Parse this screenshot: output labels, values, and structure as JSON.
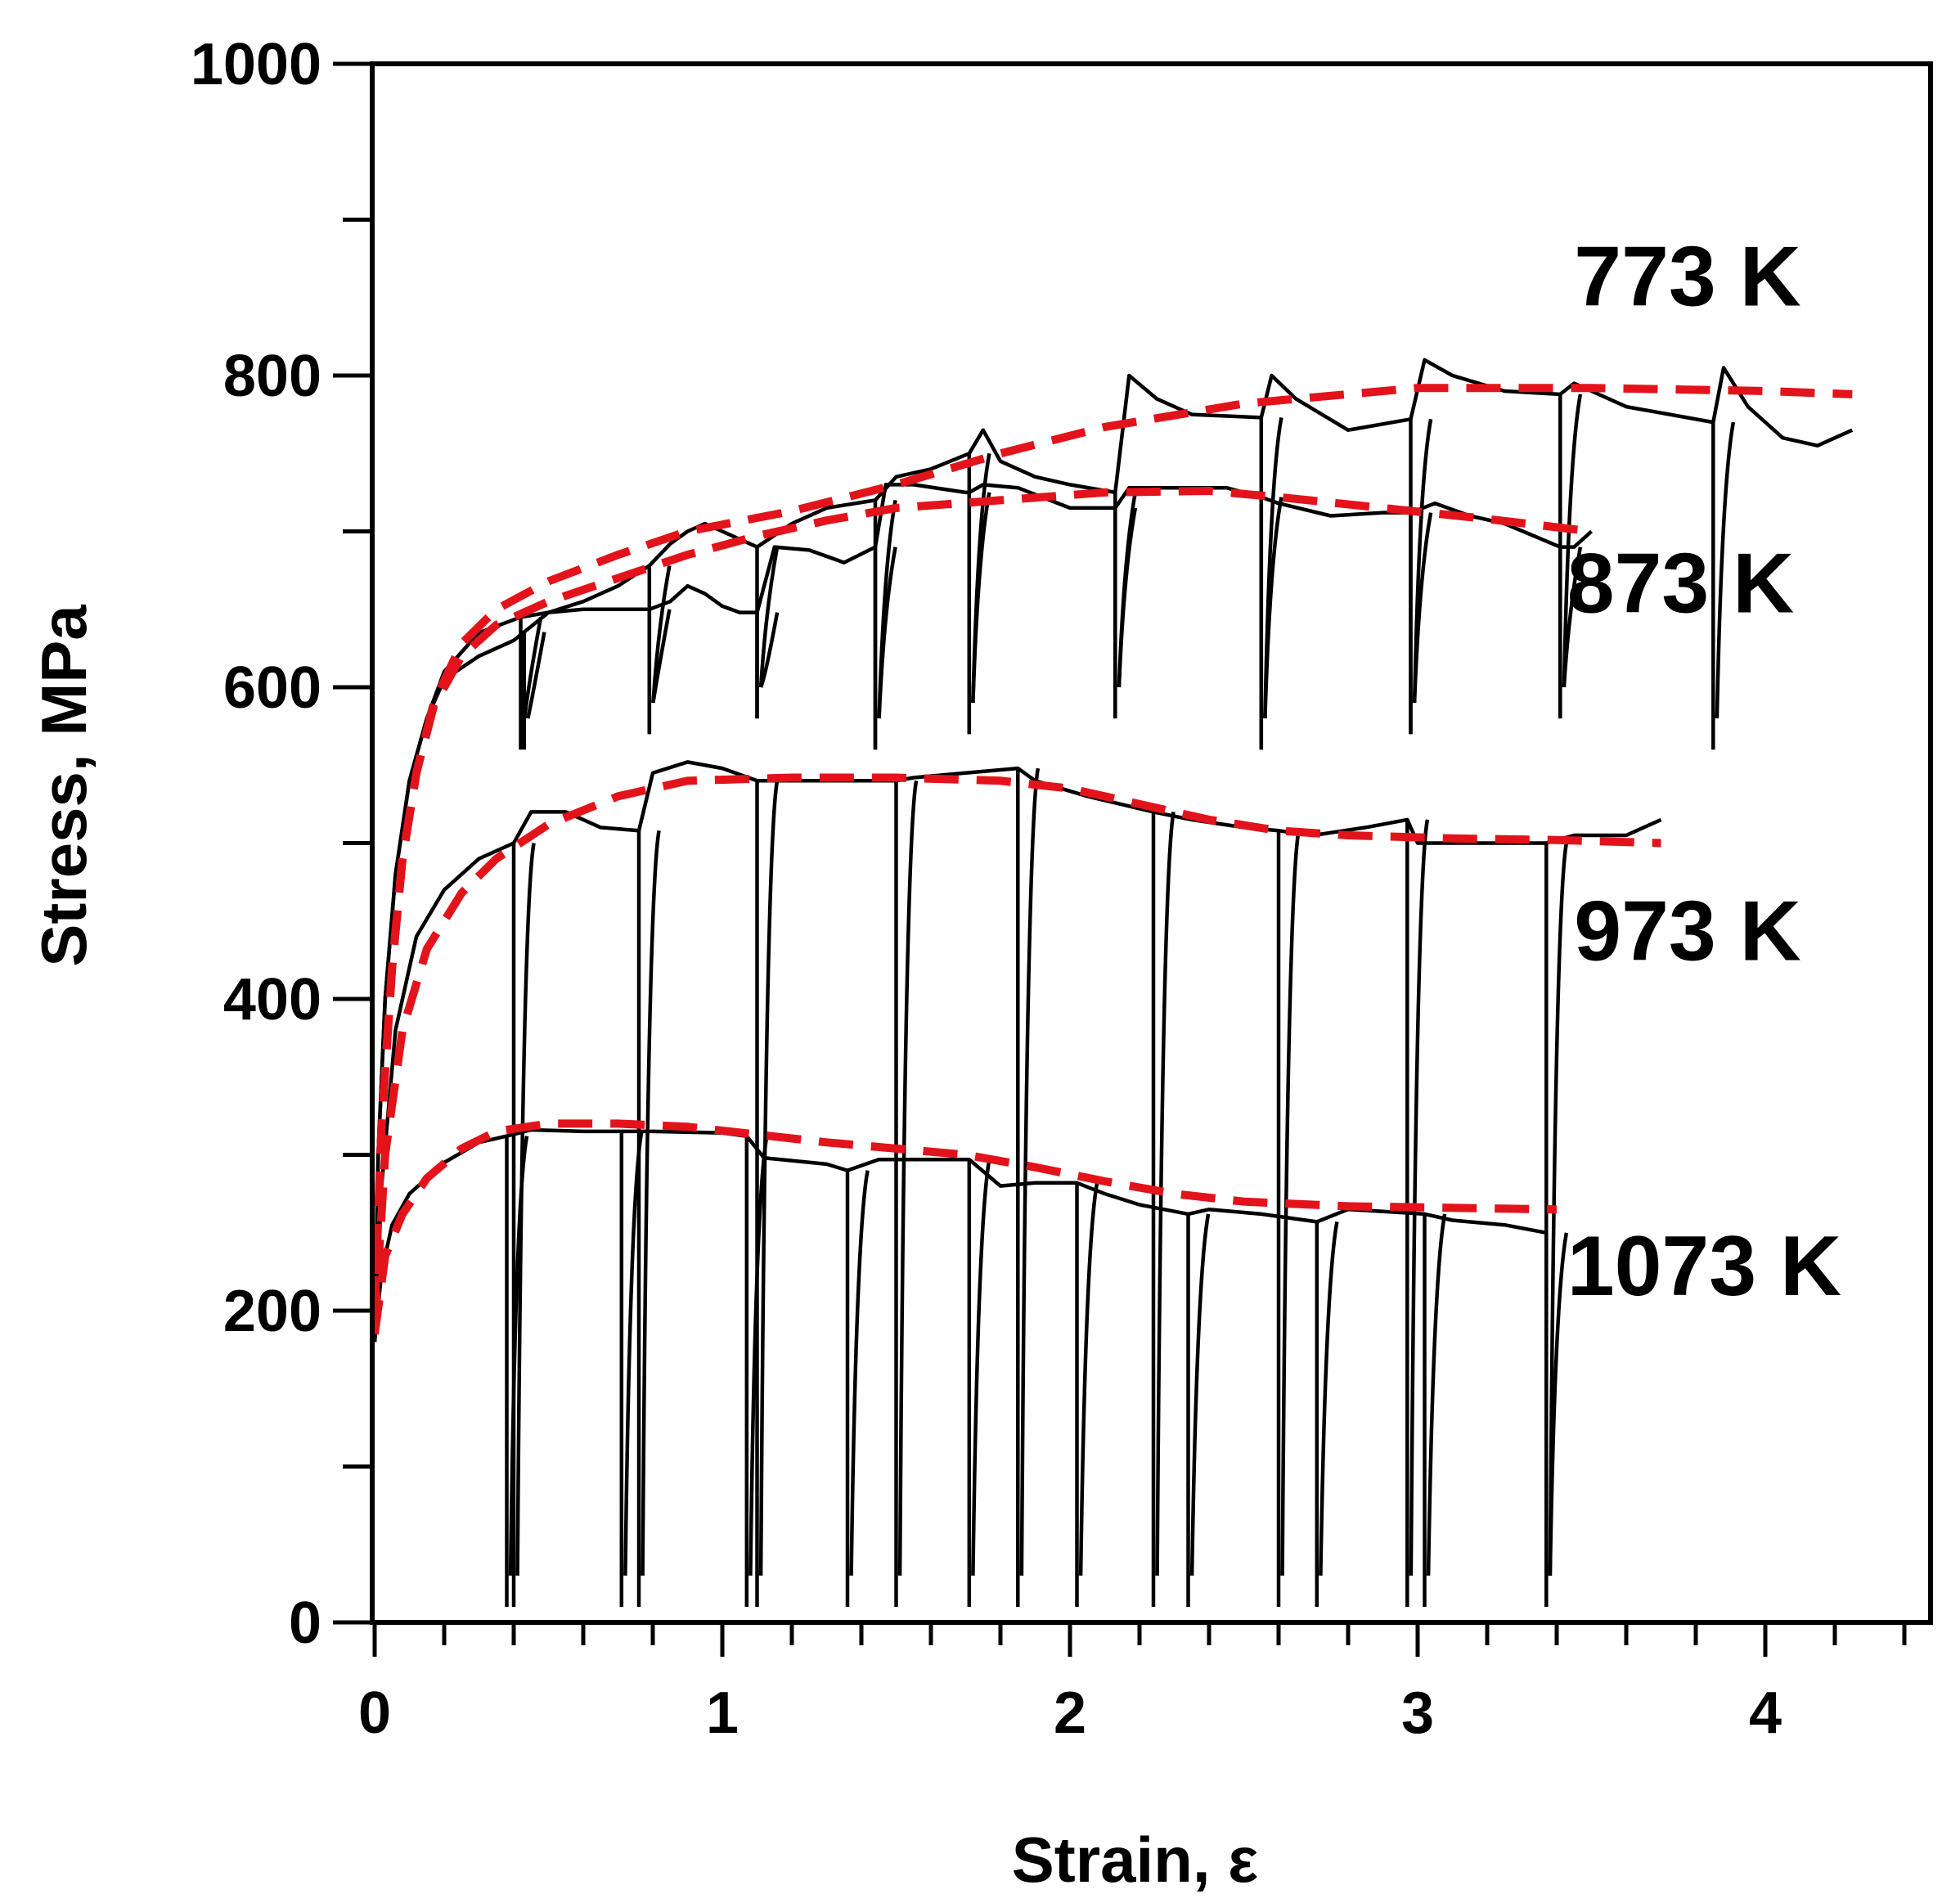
{
  "colors": {
    "fit": "#e3131b",
    "raw": "#000000",
    "axis": "#000000"
  },
  "chart_data": {
    "type": "line",
    "title": "",
    "xlabel": "Strain, ε",
    "ylabel": "Stress, MPa",
    "xlim": [
      0,
      4.4
    ],
    "ylim": [
      0,
      1000
    ],
    "xticks": [
      0,
      1,
      2,
      3,
      4
    ],
    "xtick_labels": [
      "0",
      "1",
      "2",
      "3",
      "4"
    ],
    "xminor_step": 0.2,
    "yticks": [
      0,
      200,
      400,
      600,
      800,
      1000
    ],
    "ytick_labels": [
      "0",
      "200",
      "400",
      "600",
      "800",
      "1000"
    ],
    "yminor_step": 100,
    "grid": false,
    "series": [
      {
        "name": "773 K",
        "label": "773 K",
        "label_anchor": [
          3.45,
          845
        ],
        "unload_points": [
          0.43,
          0.79,
          1.1,
          1.44,
          1.71,
          2.13,
          2.55,
          2.98,
          3.41,
          3.85
        ],
        "raw": [
          [
            0.0,
            180
          ],
          [
            0.01,
            300
          ],
          [
            0.03,
            400
          ],
          [
            0.06,
            480
          ],
          [
            0.1,
            540
          ],
          [
            0.15,
            580
          ],
          [
            0.2,
            605
          ],
          [
            0.3,
            620
          ],
          [
            0.4,
            630
          ],
          [
            0.5,
            648
          ],
          [
            0.6,
            655
          ],
          [
            0.7,
            665
          ],
          [
            0.79,
            678
          ],
          [
            0.85,
            692
          ],
          [
            0.9,
            700
          ],
          [
            0.95,
            705
          ],
          [
            1.0,
            700
          ],
          [
            1.1,
            690
          ],
          [
            1.2,
            705
          ],
          [
            1.3,
            715
          ],
          [
            1.44,
            720
          ],
          [
            1.5,
            735
          ],
          [
            1.6,
            740
          ],
          [
            1.71,
            750
          ],
          [
            1.75,
            765
          ],
          [
            1.8,
            745
          ],
          [
            1.9,
            735
          ],
          [
            2.0,
            730
          ],
          [
            2.13,
            725
          ],
          [
            2.17,
            800
          ],
          [
            2.25,
            785
          ],
          [
            2.35,
            775
          ],
          [
            2.55,
            773
          ],
          [
            2.58,
            800
          ],
          [
            2.65,
            785
          ],
          [
            2.8,
            765
          ],
          [
            2.98,
            772
          ],
          [
            3.02,
            810
          ],
          [
            3.1,
            800
          ],
          [
            3.25,
            790
          ],
          [
            3.41,
            788
          ],
          [
            3.45,
            795
          ],
          [
            3.6,
            780
          ],
          [
            3.85,
            770
          ],
          [
            3.88,
            805
          ],
          [
            3.95,
            780
          ],
          [
            4.05,
            760
          ],
          [
            4.15,
            755
          ],
          [
            4.25,
            765
          ]
        ],
        "fit": [
          [
            0.0,
            200
          ],
          [
            0.02,
            320
          ],
          [
            0.05,
            420
          ],
          [
            0.08,
            490
          ],
          [
            0.12,
            545
          ],
          [
            0.17,
            590
          ],
          [
            0.25,
            628
          ],
          [
            0.35,
            650
          ],
          [
            0.5,
            668
          ],
          [
            0.7,
            685
          ],
          [
            0.9,
            700
          ],
          [
            1.2,
            713
          ],
          [
            1.5,
            730
          ],
          [
            1.8,
            750
          ],
          [
            2.1,
            767
          ],
          [
            2.5,
            782
          ],
          [
            3.0,
            792
          ],
          [
            3.5,
            792
          ],
          [
            4.0,
            790
          ],
          [
            4.25,
            788
          ]
        ]
      },
      {
        "name": "873 K",
        "label": "873 K",
        "label_anchor": [
          3.43,
          648
        ],
        "unload_points": [
          0.42,
          0.79,
          1.1,
          1.44,
          1.71,
          2.13,
          2.55,
          2.98,
          3.41
        ],
        "raw": [
          [
            0.0,
            180
          ],
          [
            0.01,
            300
          ],
          [
            0.03,
            400
          ],
          [
            0.06,
            480
          ],
          [
            0.1,
            540
          ],
          [
            0.15,
            580
          ],
          [
            0.2,
            610
          ],
          [
            0.3,
            635
          ],
          [
            0.42,
            645
          ],
          [
            0.5,
            648
          ],
          [
            0.6,
            650
          ],
          [
            0.7,
            650
          ],
          [
            0.79,
            650
          ],
          [
            0.85,
            655
          ],
          [
            0.9,
            665
          ],
          [
            0.95,
            660
          ],
          [
            1.0,
            652
          ],
          [
            1.05,
            648
          ],
          [
            1.1,
            648
          ],
          [
            1.15,
            690
          ],
          [
            1.25,
            688
          ],
          [
            1.35,
            680
          ],
          [
            1.44,
            690
          ],
          [
            1.47,
            730
          ],
          [
            1.55,
            730
          ],
          [
            1.7,
            725
          ],
          [
            1.71,
            725
          ],
          [
            1.75,
            730
          ],
          [
            1.85,
            728
          ],
          [
            2.0,
            715
          ],
          [
            2.13,
            715
          ],
          [
            2.17,
            728
          ],
          [
            2.3,
            728
          ],
          [
            2.45,
            728
          ],
          [
            2.55,
            722
          ],
          [
            2.6,
            718
          ],
          [
            2.75,
            710
          ],
          [
            2.9,
            712
          ],
          [
            2.98,
            712
          ],
          [
            3.05,
            718
          ],
          [
            3.15,
            710
          ],
          [
            3.25,
            705
          ],
          [
            3.41,
            690
          ],
          [
            3.45,
            690
          ],
          [
            3.5,
            700
          ]
        ],
        "fit": [
          [
            0.0,
            200
          ],
          [
            0.02,
            320
          ],
          [
            0.05,
            420
          ],
          [
            0.08,
            490
          ],
          [
            0.12,
            545
          ],
          [
            0.17,
            588
          ],
          [
            0.25,
            620
          ],
          [
            0.35,
            640
          ],
          [
            0.5,
            655
          ],
          [
            0.7,
            670
          ],
          [
            0.9,
            685
          ],
          [
            1.1,
            697
          ],
          [
            1.3,
            707
          ],
          [
            1.5,
            715
          ],
          [
            1.8,
            720
          ],
          [
            2.1,
            725
          ],
          [
            2.4,
            726
          ],
          [
            2.6,
            722
          ],
          [
            2.9,
            715
          ],
          [
            3.2,
            708
          ],
          [
            3.5,
            700
          ]
        ]
      },
      {
        "name": "973 K",
        "label": "973 K",
        "label_anchor": [
          3.45,
          425
        ],
        "unload_points": [
          0.4,
          0.76,
          1.1,
          1.5,
          1.85,
          2.24,
          2.6,
          2.97,
          3.37
        ],
        "raw": [
          [
            0.0,
            180
          ],
          [
            0.02,
            280
          ],
          [
            0.06,
            380
          ],
          [
            0.12,
            440
          ],
          [
            0.2,
            470
          ],
          [
            0.3,
            490
          ],
          [
            0.4,
            500
          ],
          [
            0.45,
            520
          ],
          [
            0.55,
            520
          ],
          [
            0.65,
            510
          ],
          [
            0.76,
            508
          ],
          [
            0.8,
            545
          ],
          [
            0.9,
            552
          ],
          [
            1.0,
            548
          ],
          [
            1.1,
            540
          ],
          [
            1.15,
            540
          ],
          [
            1.3,
            540
          ],
          [
            1.5,
            540
          ],
          [
            1.55,
            542
          ],
          [
            1.7,
            545
          ],
          [
            1.85,
            548
          ],
          [
            1.9,
            540
          ],
          [
            2.05,
            530
          ],
          [
            2.24,
            520
          ],
          [
            2.35,
            515
          ],
          [
            2.5,
            510
          ],
          [
            2.6,
            508
          ],
          [
            2.7,
            505
          ],
          [
            2.85,
            510
          ],
          [
            2.97,
            515
          ],
          [
            3.0,
            500
          ],
          [
            3.2,
            500
          ],
          [
            3.37,
            500
          ],
          [
            3.45,
            505
          ],
          [
            3.6,
            505
          ],
          [
            3.7,
            515
          ]
        ],
        "fit": [
          [
            0.0,
            190
          ],
          [
            0.03,
            300
          ],
          [
            0.08,
            380
          ],
          [
            0.15,
            432
          ],
          [
            0.25,
            468
          ],
          [
            0.35,
            490
          ],
          [
            0.5,
            512
          ],
          [
            0.7,
            530
          ],
          [
            0.9,
            540
          ],
          [
            1.2,
            542
          ],
          [
            1.5,
            542
          ],
          [
            1.8,
            540
          ],
          [
            2.0,
            535
          ],
          [
            2.2,
            525
          ],
          [
            2.4,
            515
          ],
          [
            2.6,
            508
          ],
          [
            2.8,
            505
          ],
          [
            3.1,
            503
          ],
          [
            3.4,
            502
          ],
          [
            3.7,
            500
          ]
        ]
      },
      {
        "name": "1073 K",
        "label": "1073 K",
        "label_anchor": [
          3.43,
          210
        ],
        "unload_points": [
          0.38,
          0.71,
          1.07,
          1.36,
          1.71,
          2.02,
          2.34,
          2.71,
          3.02,
          3.37
        ],
        "raw": [
          [
            0.0,
            180
          ],
          [
            0.02,
            225
          ],
          [
            0.05,
            255
          ],
          [
            0.1,
            275
          ],
          [
            0.2,
            295
          ],
          [
            0.3,
            308
          ],
          [
            0.38,
            312
          ],
          [
            0.45,
            316
          ],
          [
            0.6,
            315
          ],
          [
            0.71,
            315
          ],
          [
            0.8,
            315
          ],
          [
            1.0,
            314
          ],
          [
            1.07,
            312
          ],
          [
            1.12,
            298
          ],
          [
            1.3,
            294
          ],
          [
            1.36,
            290
          ],
          [
            1.45,
            297
          ],
          [
            1.6,
            297
          ],
          [
            1.71,
            297
          ],
          [
            1.8,
            280
          ],
          [
            1.9,
            282
          ],
          [
            2.02,
            282
          ],
          [
            2.1,
            275
          ],
          [
            2.2,
            268
          ],
          [
            2.34,
            262
          ],
          [
            2.4,
            265
          ],
          [
            2.55,
            262
          ],
          [
            2.71,
            257
          ],
          [
            2.8,
            265
          ],
          [
            2.95,
            263
          ],
          [
            3.02,
            262
          ],
          [
            3.1,
            258
          ],
          [
            3.25,
            255
          ],
          [
            3.37,
            250
          ]
        ],
        "fit": [
          [
            0.0,
            185
          ],
          [
            0.03,
            235
          ],
          [
            0.08,
            262
          ],
          [
            0.15,
            285
          ],
          [
            0.25,
            304
          ],
          [
            0.35,
            315
          ],
          [
            0.5,
            320
          ],
          [
            0.7,
            320
          ],
          [
            0.9,
            318
          ],
          [
            1.1,
            313
          ],
          [
            1.3,
            308
          ],
          [
            1.5,
            304
          ],
          [
            1.7,
            300
          ],
          [
            1.9,
            292
          ],
          [
            2.1,
            283
          ],
          [
            2.3,
            275
          ],
          [
            2.5,
            270
          ],
          [
            2.8,
            267
          ],
          [
            3.1,
            266
          ],
          [
            3.4,
            265
          ]
        ]
      }
    ]
  }
}
